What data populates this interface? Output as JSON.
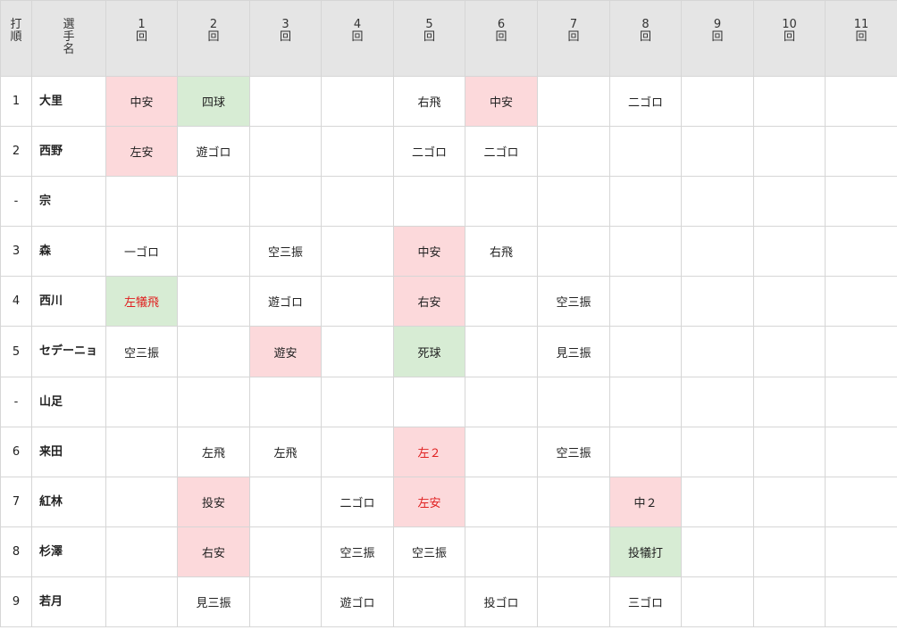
{
  "header": {
    "order": [
      "打",
      "順"
    ],
    "player": [
      "選",
      "手",
      "名"
    ],
    "innings": [
      [
        "1",
        "回"
      ],
      [
        "2",
        "回"
      ],
      [
        "3",
        "回"
      ],
      [
        "4",
        "回"
      ],
      [
        "5",
        "回"
      ],
      [
        "6",
        "回"
      ],
      [
        "7",
        "回"
      ],
      [
        "8",
        "回"
      ],
      [
        "9",
        "回"
      ],
      [
        "10",
        "回"
      ],
      [
        "11",
        "回"
      ]
    ]
  },
  "rows": [
    {
      "order": "1",
      "name": "大里",
      "cells": [
        {
          "t": "中安",
          "k": "hit"
        },
        {
          "t": "四球",
          "k": "walk"
        },
        {
          "t": ""
        },
        {
          "t": ""
        },
        {
          "t": "右飛"
        },
        {
          "t": "中安",
          "k": "hit"
        },
        {
          "t": ""
        },
        {
          "t": "二ゴロ"
        },
        {
          "t": ""
        },
        {
          "t": ""
        },
        {
          "t": ""
        }
      ]
    },
    {
      "order": "2",
      "name": "西野",
      "cells": [
        {
          "t": "左安",
          "k": "hit"
        },
        {
          "t": "遊ゴロ"
        },
        {
          "t": ""
        },
        {
          "t": ""
        },
        {
          "t": "二ゴロ"
        },
        {
          "t": "二ゴロ"
        },
        {
          "t": ""
        },
        {
          "t": ""
        },
        {
          "t": ""
        },
        {
          "t": ""
        },
        {
          "t": ""
        }
      ]
    },
    {
      "order": "-",
      "name": "宗",
      "cells": [
        {
          "t": ""
        },
        {
          "t": ""
        },
        {
          "t": ""
        },
        {
          "t": ""
        },
        {
          "t": ""
        },
        {
          "t": ""
        },
        {
          "t": ""
        },
        {
          "t": ""
        },
        {
          "t": ""
        },
        {
          "t": ""
        },
        {
          "t": ""
        }
      ]
    },
    {
      "order": "3",
      "name": "森",
      "cells": [
        {
          "t": "一ゴロ"
        },
        {
          "t": ""
        },
        {
          "t": "空三振"
        },
        {
          "t": ""
        },
        {
          "t": "中安",
          "k": "hit"
        },
        {
          "t": "右飛"
        },
        {
          "t": ""
        },
        {
          "t": ""
        },
        {
          "t": ""
        },
        {
          "t": ""
        },
        {
          "t": ""
        }
      ]
    },
    {
      "order": "4",
      "name": "西川",
      "cells": [
        {
          "t": "左犠飛",
          "k": "walk",
          "rbi": true
        },
        {
          "t": ""
        },
        {
          "t": "遊ゴロ"
        },
        {
          "t": ""
        },
        {
          "t": "右安",
          "k": "hit"
        },
        {
          "t": ""
        },
        {
          "t": "空三振"
        },
        {
          "t": ""
        },
        {
          "t": ""
        },
        {
          "t": ""
        },
        {
          "t": ""
        }
      ]
    },
    {
      "order": "5",
      "name": "セデーニョ",
      "cells": [
        {
          "t": "空三振"
        },
        {
          "t": ""
        },
        {
          "t": "遊安",
          "k": "hit"
        },
        {
          "t": ""
        },
        {
          "t": "死球",
          "k": "walk"
        },
        {
          "t": ""
        },
        {
          "t": "見三振"
        },
        {
          "t": ""
        },
        {
          "t": ""
        },
        {
          "t": ""
        },
        {
          "t": ""
        }
      ]
    },
    {
      "order": "-",
      "name": "山足",
      "cells": [
        {
          "t": ""
        },
        {
          "t": ""
        },
        {
          "t": ""
        },
        {
          "t": ""
        },
        {
          "t": ""
        },
        {
          "t": ""
        },
        {
          "t": ""
        },
        {
          "t": ""
        },
        {
          "t": ""
        },
        {
          "t": ""
        },
        {
          "t": ""
        }
      ]
    },
    {
      "order": "6",
      "name": "来田",
      "cells": [
        {
          "t": ""
        },
        {
          "t": "左飛"
        },
        {
          "t": "左飛"
        },
        {
          "t": ""
        },
        {
          "t": "左２",
          "k": "hit",
          "rbi": true
        },
        {
          "t": ""
        },
        {
          "t": "空三振"
        },
        {
          "t": ""
        },
        {
          "t": ""
        },
        {
          "t": ""
        },
        {
          "t": ""
        }
      ]
    },
    {
      "order": "7",
      "name": "紅林",
      "cells": [
        {
          "t": ""
        },
        {
          "t": "投安",
          "k": "hit"
        },
        {
          "t": ""
        },
        {
          "t": "二ゴロ"
        },
        {
          "t": "左安",
          "k": "hit",
          "rbi": true
        },
        {
          "t": ""
        },
        {
          "t": ""
        },
        {
          "t": "中２",
          "k": "hit"
        },
        {
          "t": ""
        },
        {
          "t": ""
        },
        {
          "t": ""
        }
      ]
    },
    {
      "order": "8",
      "name": "杉澤",
      "cells": [
        {
          "t": ""
        },
        {
          "t": "右安",
          "k": "hit"
        },
        {
          "t": ""
        },
        {
          "t": "空三振"
        },
        {
          "t": "空三振"
        },
        {
          "t": ""
        },
        {
          "t": ""
        },
        {
          "t": "投犠打",
          "k": "walk"
        },
        {
          "t": ""
        },
        {
          "t": ""
        },
        {
          "t": ""
        }
      ]
    },
    {
      "order": "9",
      "name": "若月",
      "cells": [
        {
          "t": ""
        },
        {
          "t": "見三振"
        },
        {
          "t": ""
        },
        {
          "t": "遊ゴロ"
        },
        {
          "t": ""
        },
        {
          "t": "投ゴロ"
        },
        {
          "t": ""
        },
        {
          "t": "三ゴロ"
        },
        {
          "t": ""
        },
        {
          "t": ""
        },
        {
          "t": ""
        }
      ]
    }
  ],
  "colors": {
    "header_bg": "#e5e5e5",
    "hit_bg": "#fcd9db",
    "walk_bg": "#d7ecd4",
    "rbi_text": "#e02020",
    "border": "#d6d6d6"
  }
}
